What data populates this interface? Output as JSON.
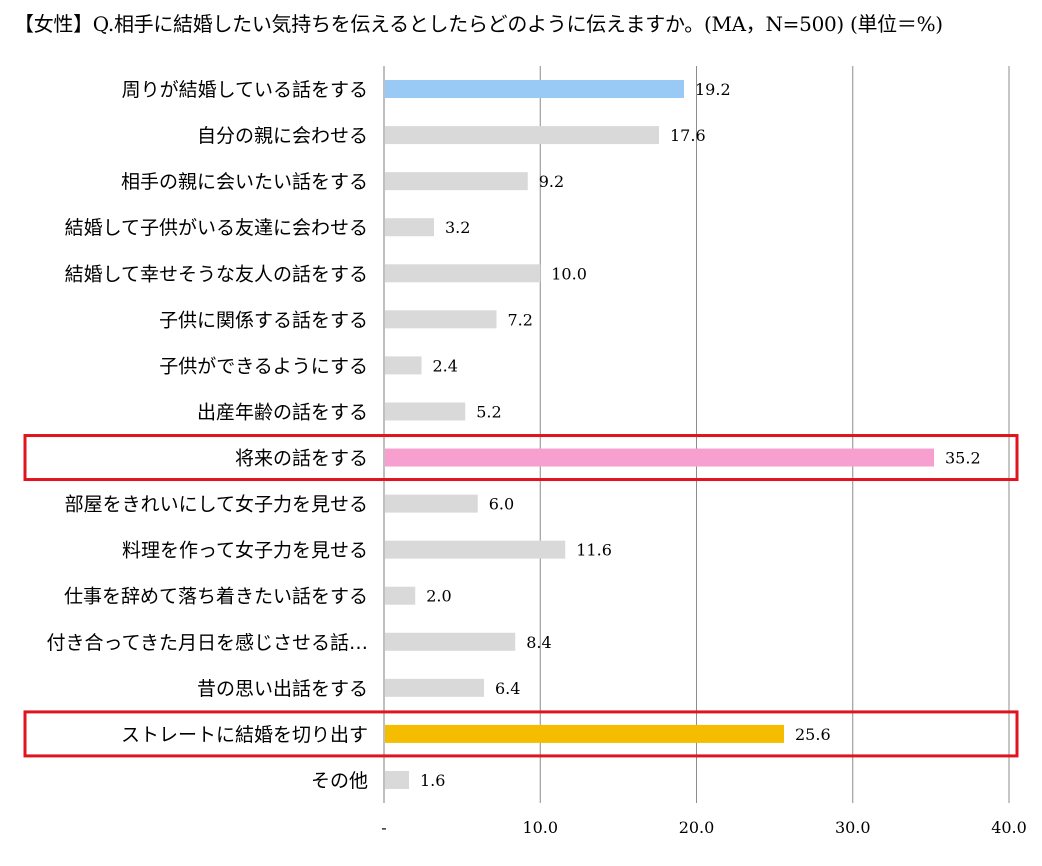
{
  "chart_data": {
    "type": "bar",
    "orientation": "horizontal",
    "title": "【女性】Q.相手に結婚したい気持ちを伝えるとしたらどのように伝えますか。(MA，N=500) (単位＝%)",
    "categories": [
      "周りが結婚している話をする",
      "自分の親に会わせる",
      "相手の親に会いたい話をする",
      "結婚して子供がいる友達に会わせる",
      "結婚して幸せそうな友人の話をする",
      "子供に関係する話をする",
      "子供ができるようにする",
      "出産年齢の話をする",
      "将来の話をする",
      "部屋をきれいにして女子力を見せる",
      "料理を作って女子力を見せる",
      "仕事を辞めて落ち着きたい話をする",
      "付き合ってきた月日を感じさせる話…",
      "昔の思い出話をする",
      "ストレートに結婚を切り出す",
      "その他"
    ],
    "values": [
      19.2,
      17.6,
      9.2,
      3.2,
      10.0,
      7.2,
      2.4,
      5.2,
      35.2,
      6.0,
      11.6,
      2.0,
      8.4,
      6.4,
      25.6,
      1.6
    ],
    "value_labels": [
      "19.2",
      "17.6",
      "9.2",
      "3.2",
      "10.0",
      "7.2",
      "2.4",
      "5.2",
      "35.2",
      "6.0",
      "11.6",
      "2.0",
      "8.4",
      "6.4",
      "25.6",
      "1.6"
    ],
    "bar_colors": [
      "#99c9f5",
      "#d9d9d9",
      "#d9d9d9",
      "#d9d9d9",
      "#d9d9d9",
      "#d9d9d9",
      "#d9d9d9",
      "#d9d9d9",
      "#f79fcf",
      "#d9d9d9",
      "#d9d9d9",
      "#d9d9d9",
      "#d9d9d9",
      "#d9d9d9",
      "#f5bd00",
      "#d9d9d9"
    ],
    "highlighted_categories": [
      "将来の話をする",
      "ストレートに結婚を切り出す"
    ],
    "highlight_color": "#e0141e",
    "xlim": [
      0,
      40
    ],
    "xticks": [
      0,
      10,
      20,
      30,
      40
    ],
    "xtick_labels": [
      "-",
      "10.0",
      "20.0",
      "30.0",
      "40.0"
    ],
    "grid": true,
    "legend": "none"
  }
}
